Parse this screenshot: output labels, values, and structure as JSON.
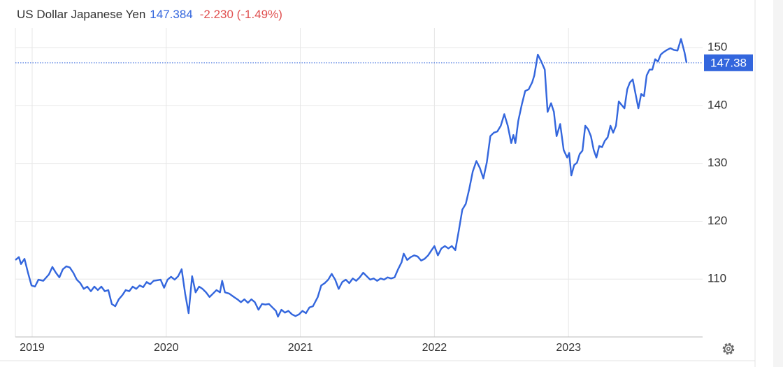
{
  "chart_data": {
    "type": "line",
    "title": "US Dollar Japanese Yen",
    "price": "147.384",
    "change": "-2.230 (-1.49%)",
    "current_level": 147.38,
    "color": "#3366dd",
    "grid": true,
    "xlim": [
      2018.875,
      2024.0
    ],
    "xticks": [
      2019,
      2020,
      2021,
      2022,
      2023
    ],
    "ylim": [
      100,
      153.4
    ],
    "yticks": [
      110,
      120,
      130,
      140,
      150
    ],
    "x": [
      2018.875,
      2018.901,
      2018.917,
      2018.943,
      2018.969,
      2018.995,
      2019.021,
      2019.047,
      2019.083,
      2019.125,
      2019.151,
      2019.177,
      2019.203,
      2019.229,
      2019.255,
      2019.281,
      2019.307,
      2019.333,
      2019.359,
      2019.385,
      2019.411,
      2019.438,
      2019.464,
      2019.49,
      2019.516,
      2019.542,
      2019.568,
      2019.594,
      2019.62,
      2019.646,
      2019.672,
      2019.698,
      2019.724,
      2019.75,
      2019.776,
      2019.802,
      2019.828,
      2019.854,
      2019.88,
      2019.906,
      2019.932,
      2019.958,
      2019.984,
      2020.01,
      2020.036,
      2020.063,
      2020.089,
      2020.115,
      2020.141,
      2020.167,
      2020.193,
      2020.219,
      2020.245,
      2020.271,
      2020.297,
      2020.323,
      2020.349,
      2020.375,
      2020.401,
      2020.417,
      2020.438,
      2020.469,
      2020.505,
      2020.531,
      2020.557,
      2020.583,
      2020.609,
      2020.635,
      2020.661,
      2020.688,
      2020.714,
      2020.74,
      2020.766,
      2020.792,
      2020.818,
      2020.833,
      2020.859,
      2020.885,
      2020.911,
      2020.938,
      2020.964,
      2020.99,
      2021.016,
      2021.042,
      2021.068,
      2021.094,
      2021.13,
      2021.156,
      2021.182,
      2021.208,
      2021.234,
      2021.26,
      2021.286,
      2021.313,
      2021.339,
      2021.365,
      2021.391,
      2021.417,
      2021.443,
      2021.469,
      2021.495,
      2021.521,
      2021.547,
      2021.573,
      2021.599,
      2021.625,
      2021.651,
      2021.677,
      2021.703,
      2021.729,
      2021.755,
      2021.771,
      2021.797,
      2021.823,
      2021.849,
      2021.875,
      2021.901,
      2021.927,
      2021.953,
      2021.979,
      2022.0,
      2022.026,
      2022.052,
      2022.078,
      2022.104,
      2022.13,
      2022.156,
      2022.182,
      2022.208,
      2022.234,
      2022.26,
      2022.286,
      2022.313,
      2022.339,
      2022.365,
      2022.391,
      2022.417,
      2022.443,
      2022.469,
      2022.495,
      2022.521,
      2022.547,
      2022.573,
      2022.589,
      2022.604,
      2022.625,
      2022.651,
      2022.677,
      2022.703,
      2022.729,
      2022.745,
      2022.771,
      2022.797,
      2022.823,
      2022.844,
      2022.87,
      2022.891,
      2022.911,
      2022.938,
      2022.964,
      2022.99,
      2023.005,
      2023.021,
      2023.042,
      2023.063,
      2023.083,
      2023.104,
      2023.125,
      2023.146,
      2023.167,
      2023.188,
      2023.208,
      2023.229,
      2023.25,
      2023.271,
      2023.292,
      2023.313,
      2023.333,
      2023.354,
      2023.375,
      2023.396,
      2023.417,
      2023.438,
      2023.458,
      2023.479,
      2023.5,
      2023.521,
      2023.542,
      2023.563,
      2023.583,
      2023.604,
      2023.625,
      2023.646,
      2023.667,
      2023.688,
      2023.708,
      2023.734,
      2023.76,
      2023.786,
      2023.813,
      2023.839,
      2023.865,
      2023.88
    ],
    "values": [
      113.3,
      113.8,
      112.6,
      113.5,
      111.1,
      108.9,
      108.7,
      109.9,
      109.7,
      110.8,
      112.1,
      111.1,
      110.3,
      111.7,
      112.2,
      112.0,
      111.1,
      109.9,
      109.3,
      108.3,
      108.7,
      107.9,
      108.7,
      108.1,
      108.7,
      107.9,
      108.1,
      105.7,
      105.3,
      106.5,
      107.2,
      108.1,
      107.9,
      108.7,
      108.3,
      108.9,
      108.6,
      109.5,
      109.1,
      109.7,
      109.8,
      109.9,
      108.5,
      109.9,
      110.4,
      109.9,
      110.5,
      111.7,
      107.5,
      104.1,
      110.5,
      107.7,
      108.7,
      108.3,
      107.7,
      106.9,
      107.5,
      108.1,
      107.7,
      109.7,
      107.7,
      107.5,
      106.9,
      106.5,
      106.0,
      106.5,
      105.9,
      106.5,
      106.0,
      104.7,
      105.7,
      105.6,
      105.7,
      105.1,
      104.5,
      103.5,
      104.7,
      104.2,
      104.5,
      103.9,
      103.6,
      103.9,
      104.5,
      104.1,
      105.1,
      105.3,
      106.9,
      108.9,
      109.3,
      109.9,
      110.9,
      109.9,
      108.3,
      109.5,
      109.9,
      109.3,
      110.1,
      109.7,
      110.3,
      111.1,
      110.5,
      109.9,
      110.1,
      109.7,
      110.1,
      109.9,
      110.3,
      110.1,
      110.3,
      111.7,
      112.9,
      114.4,
      113.3,
      113.8,
      114.1,
      113.9,
      113.2,
      113.5,
      114.1,
      115.0,
      115.7,
      114.1,
      115.3,
      115.7,
      115.3,
      115.7,
      115.0,
      118.4,
      122.0,
      123.0,
      125.6,
      128.6,
      130.4,
      129.2,
      127.4,
      130.2,
      134.7,
      135.3,
      135.5,
      136.5,
      138.5,
      136.5,
      133.5,
      134.9,
      133.5,
      137.3,
      140.1,
      142.5,
      142.8,
      144.0,
      145.2,
      148.8,
      147.6,
      146.2,
      138.9,
      140.4,
      138.9,
      134.7,
      136.8,
      132.3,
      131.0,
      131.8,
      127.9,
      129.7,
      130.1,
      131.6,
      132.2,
      136.5,
      135.9,
      134.7,
      132.3,
      131.0,
      133.0,
      132.8,
      133.9,
      134.5,
      136.5,
      135.3,
      136.5,
      140.7,
      140.1,
      139.5,
      142.8,
      144.0,
      144.5,
      142.0,
      139.5,
      142.0,
      141.6,
      145.2,
      146.2,
      146.2,
      148.0,
      147.6,
      148.8,
      149.2,
      149.6,
      149.9,
      149.6,
      149.5,
      151.5,
      149.2,
      147.4
    ]
  }
}
